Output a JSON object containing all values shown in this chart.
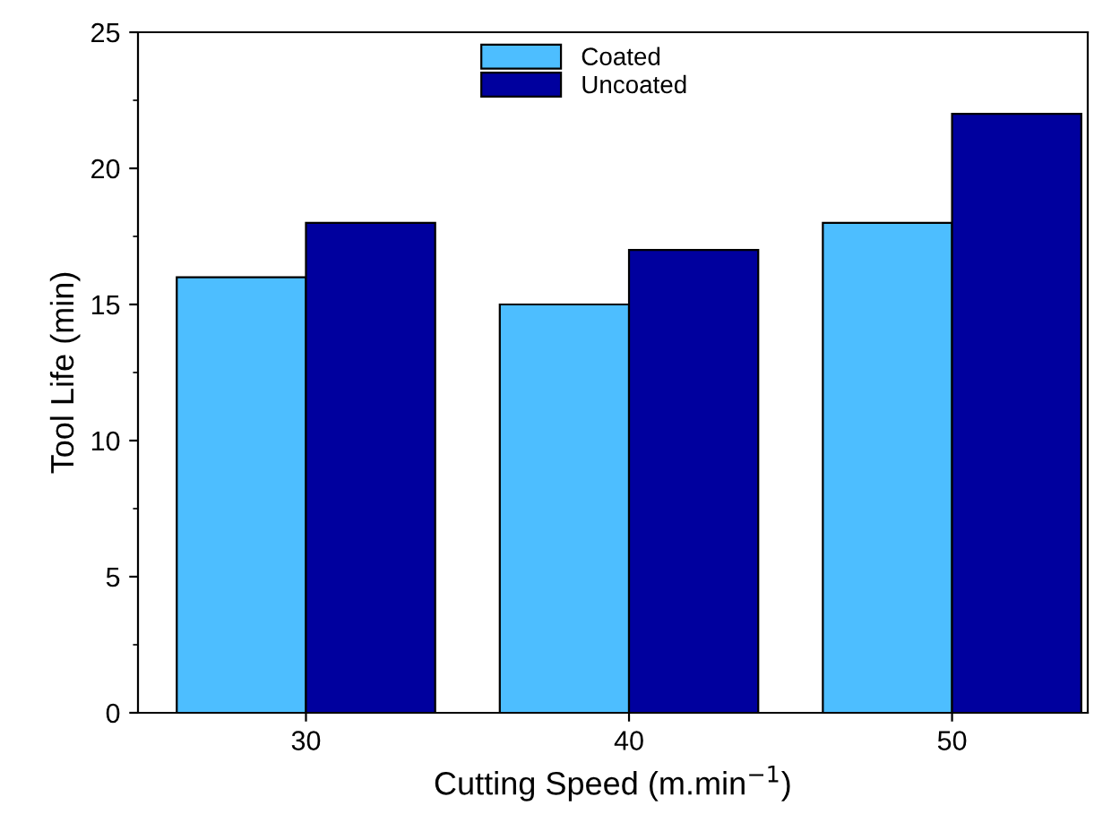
{
  "chart_data": {
    "type": "bar",
    "xlabel": "Cutting Speed (m.min$^{−1}$)",
    "ylabel": "Tool Life (min)",
    "categories": [
      "30",
      "40",
      "50"
    ],
    "series": [
      {
        "name": "Coated",
        "color": "#4dbeff",
        "values": [
          16,
          15,
          18
        ]
      },
      {
        "name": "Uncoated",
        "color": "#00009e",
        "values": [
          18,
          17,
          22
        ]
      }
    ],
    "ylim": [
      0,
      25
    ],
    "yticks": [
      0,
      5,
      10,
      15,
      20,
      25
    ],
    "grid": false,
    "legend": "top"
  }
}
